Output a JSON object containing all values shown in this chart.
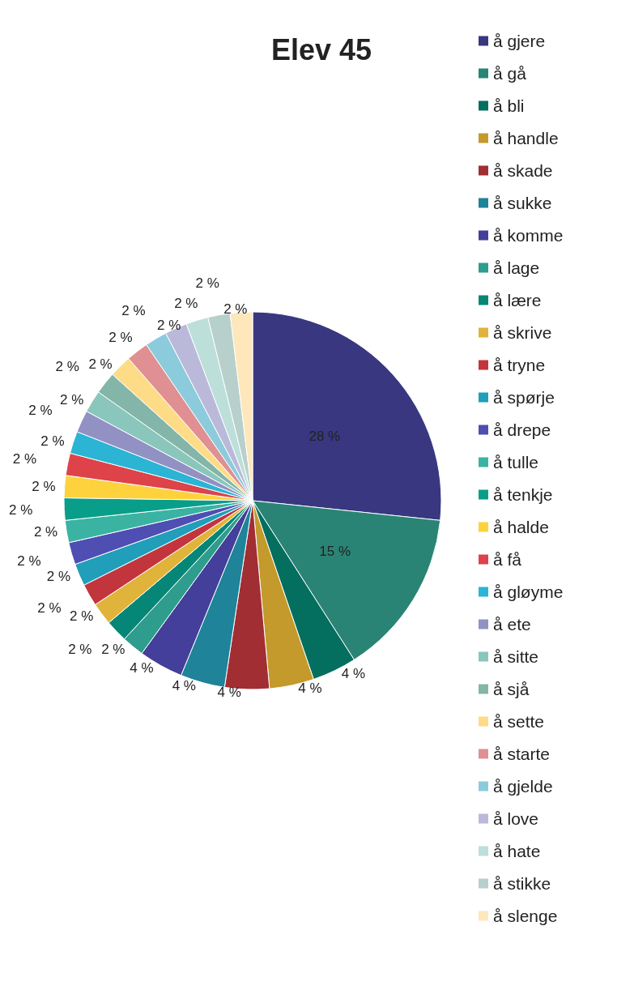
{
  "chart_data": {
    "type": "pie",
    "title": "Elev 45",
    "categories": [
      "å gjere",
      "å gå",
      "å bli",
      "å handle",
      "å skade",
      "å sukke",
      "å komme",
      "å lage",
      "å lære",
      "å skrive",
      "å tryne",
      "å spørje",
      "å drepe",
      "å tulle",
      "å tenkje",
      "å halde",
      "å få",
      "å gløyme",
      "å ete",
      "å sitte",
      "å sjå",
      "å sette",
      "å starte",
      "å gjelde",
      "å love",
      "å hate",
      "å stikke",
      "å slenge"
    ],
    "values": [
      28,
      15,
      4,
      4,
      4,
      4,
      4,
      2,
      2,
      2,
      2,
      2,
      2,
      2,
      2,
      2,
      2,
      2,
      2,
      2,
      2,
      2,
      2,
      2,
      2,
      2,
      2,
      2
    ],
    "value_labels": [
      "28 %",
      "15 %",
      "4 %",
      "4 %",
      "4 %",
      "4 %",
      "4 %",
      "2 %",
      "2 %",
      "2 %",
      "2 %",
      "2 %",
      "2 %",
      "2 %",
      "2 %",
      "2 %",
      "2 %",
      "2 %",
      "2 %",
      "2 %",
      "2 %",
      "2 %",
      "2 %",
      "2 %",
      "2 %",
      "2 %",
      "2 %",
      "2 %"
    ],
    "colors": [
      "#38377f",
      "#2a8475",
      "#046f5f",
      "#c39a2b",
      "#a12e33",
      "#1f8399",
      "#433f9a",
      "#2f9d8d",
      "#068676",
      "#e0b43a",
      "#c3353d",
      "#219eb9",
      "#4f4eb2",
      "#3ab3a3",
      "#089e8a",
      "#fdd23c",
      "#dd4349",
      "#2bb4d4",
      "#9291c4",
      "#8ac6bb",
      "#83b6a8",
      "#fedb86",
      "#e09092",
      "#8ccbdc",
      "#bbb9da",
      "#bcdfd9",
      "#b8d0cb",
      "#fde7bb"
    ],
    "legend": "right"
  }
}
